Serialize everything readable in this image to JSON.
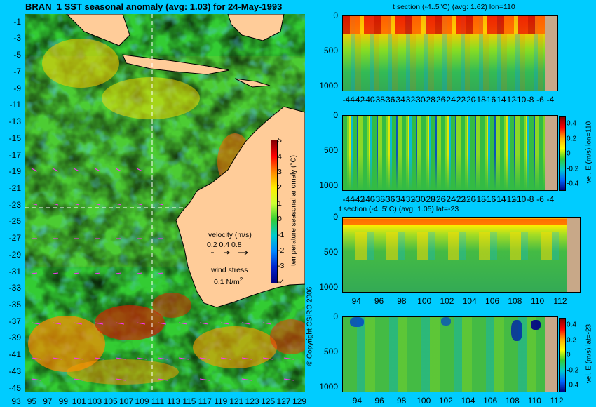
{
  "colors": {
    "background": "#00ccff",
    "land_map": "#ffcc99",
    "land_section": "#c8a888"
  },
  "map": {
    "title": "BRAN_1  SST seasonal anomaly  (avg: 1.03) for 24-May-1993",
    "colorbar_ticks": [
      "5",
      "4",
      "3",
      "2",
      "1",
      "0",
      "-1",
      "-2",
      "-3",
      "-4"
    ],
    "colorbar_label": "temperature seasonal anomaly (°C)",
    "lat_ticks": [
      "-1",
      "-3",
      "-5",
      "-7",
      "-9",
      "-11",
      "-13",
      "-15",
      "-17",
      "-19",
      "-21",
      "-23",
      "-25",
      "-27",
      "-29",
      "-31",
      "-33",
      "-35",
      "-37",
      "-39",
      "-41",
      "-43",
      "-45"
    ],
    "lon_ticks": [
      "93",
      "95",
      "97",
      "99",
      "101",
      "103",
      "105",
      "107",
      "109",
      "111",
      "113",
      "115",
      "117",
      "119",
      "121",
      "123",
      "125",
      "127",
      "129"
    ],
    "velocity_title": "velocity (m/s)",
    "velocity_scale": "0.2 0.4 0.8",
    "wind_title": "wind stress",
    "wind_value": "0.1 N/m",
    "wind_exp": "2",
    "copyright": "© Copyright CSIRO 2006"
  },
  "panels": {
    "p1": {
      "title": "t section (-4..5°C) (avg: 1.62) lon=110",
      "x_ticks": [
        "-44",
        "-42",
        "-40",
        "-38",
        "-36",
        "-34",
        "-32",
        "-30",
        "-28",
        "-26",
        "-24",
        "-22",
        "-20",
        "-18",
        "-16",
        "-14",
        "-12",
        "-10",
        "-8",
        "-6",
        "-4"
      ],
      "y_ticks": [
        "0",
        "500",
        "1000"
      ]
    },
    "p2": {
      "x_ticks": [
        "-44",
        "-42",
        "-40",
        "-38",
        "-36",
        "-34",
        "-32",
        "-30",
        "-28",
        "-26",
        "-24",
        "-22",
        "-20",
        "-18",
        "-16",
        "-14",
        "-12",
        "-10",
        "-8",
        "-6",
        "-4"
      ],
      "y_ticks": [
        "0",
        "500",
        "1000"
      ],
      "cbar_ticks": [
        "0.4",
        "0.2",
        "0",
        "-0.2",
        "-0.4"
      ],
      "cbar_label": "vel. E (m/s) lon=110"
    },
    "p3": {
      "title": "t section (-4..5°C) (avg: 1.05) lat=-23",
      "x_ticks": [
        "94",
        "96",
        "98",
        "100",
        "102",
        "104",
        "106",
        "108",
        "110",
        "112"
      ],
      "y_ticks": [
        "0",
        "500",
        "1000"
      ]
    },
    "p4": {
      "x_ticks": [
        "94",
        "96",
        "98",
        "100",
        "102",
        "104",
        "106",
        "108",
        "110",
        "112"
      ],
      "y_ticks": [
        "0",
        "500",
        "1000"
      ],
      "cbar_ticks": [
        "0.4",
        "0.2",
        "0",
        "-0.2",
        "-0.4"
      ],
      "cbar_label": "vel. E (m/s) lat=-23"
    }
  },
  "chart_data": [
    {
      "type": "heatmap",
      "title": "BRAN_1  SST seasonal anomaly  (avg: 1.03) for 24-May-1993",
      "x_range": [
        93,
        130
      ],
      "y_range": [
        -45,
        0
      ],
      "color_range": [
        -4,
        5
      ],
      "units": "°C"
    },
    {
      "type": "heatmap",
      "title": "t section (-4..5°C) (avg: 1.62) lon=110",
      "x_range": [
        -45,
        -3
      ],
      "y_range": [
        1050,
        0
      ],
      "color_range": [
        -4,
        5
      ]
    },
    {
      "type": "heatmap",
      "title": "",
      "x_range": [
        -45,
        -3
      ],
      "y_range": [
        1050,
        0
      ],
      "color_range": [
        -0.5,
        0.5
      ],
      "units": "m/s"
    },
    {
      "type": "heatmap",
      "title": "t section (-4..5°C) (avg: 1.05) lat=-23",
      "x_range": [
        93,
        114
      ],
      "y_range": [
        1050,
        0
      ],
      "color_range": [
        -4,
        5
      ]
    },
    {
      "type": "heatmap",
      "title": "",
      "x_range": [
        93,
        114
      ],
      "y_range": [
        1050,
        0
      ],
      "color_range": [
        -0.5,
        0.5
      ],
      "units": "m/s"
    }
  ]
}
